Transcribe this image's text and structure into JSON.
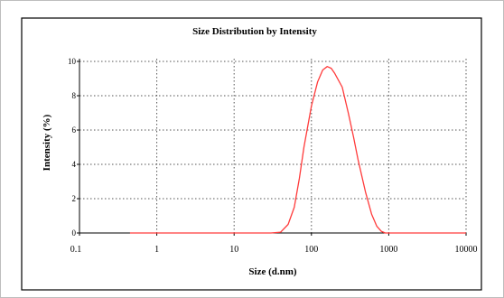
{
  "chart_data": {
    "type": "line",
    "title": "Size Distribution by Intensity",
    "xlabel": "Size (d.nm)",
    "ylabel": "Intensity (%)",
    "x_scale": "log",
    "xlim": [
      0.1,
      10000
    ],
    "ylim": [
      0,
      10
    ],
    "x_ticks": [
      "0.1",
      "1",
      "10",
      "100",
      "1000",
      "10000"
    ],
    "x_tick_values": [
      0.1,
      1,
      10,
      100,
      1000,
      10000
    ],
    "y_ticks": [
      "0",
      "2",
      "4",
      "6",
      "8",
      "10"
    ],
    "y_tick_values": [
      0,
      2,
      4,
      6,
      8,
      10
    ],
    "grid": true,
    "series": [
      {
        "color": "#ff3b3b",
        "x": [
          0.45,
          10,
          30,
          40,
          50,
          60,
          70,
          80,
          100,
          120,
          140,
          160,
          180,
          200,
          250,
          300,
          350,
          400,
          500,
          600,
          700,
          800,
          900,
          1000,
          10000
        ],
        "y": [
          0,
          0,
          0,
          0.05,
          0.5,
          1.5,
          3.2,
          5.0,
          7.4,
          8.8,
          9.5,
          9.7,
          9.6,
          9.3,
          8.5,
          7.0,
          5.6,
          4.3,
          2.4,
          1.1,
          0.4,
          0.1,
          0,
          0,
          0
        ]
      }
    ]
  }
}
